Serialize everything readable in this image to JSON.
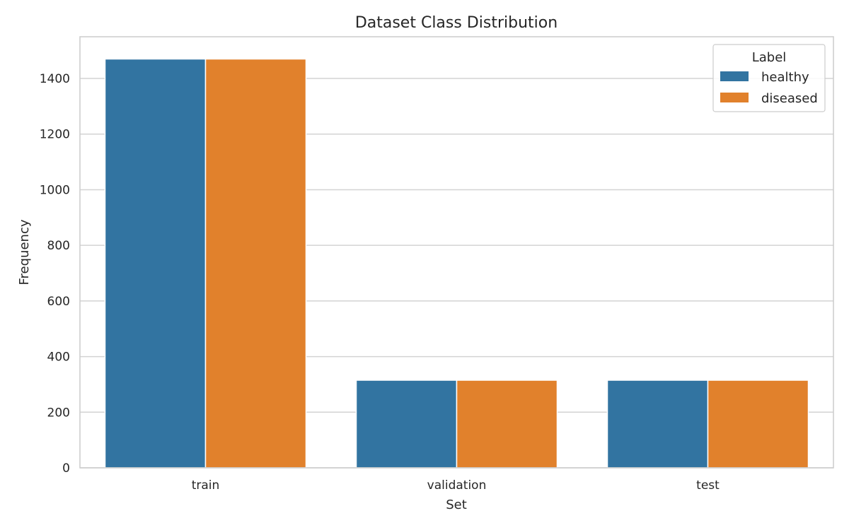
{
  "chart_data": {
    "type": "bar",
    "title": "Dataset Class Distribution",
    "xlabel": "Set",
    "ylabel": "Frequency",
    "categories": [
      "train",
      "validation",
      "test"
    ],
    "series": [
      {
        "name": "healthy",
        "values": [
          1470,
          315,
          315
        ],
        "color": "#3274a1"
      },
      {
        "name": "diseased",
        "values": [
          1470,
          315,
          315
        ],
        "color": "#e1812c"
      }
    ],
    "ylim": [
      0,
      1550
    ],
    "yticks": [
      0,
      200,
      400,
      600,
      800,
      1000,
      1200,
      1400
    ],
    "grid": true,
    "legend": {
      "title": "Label",
      "placement": "top-right"
    }
  }
}
